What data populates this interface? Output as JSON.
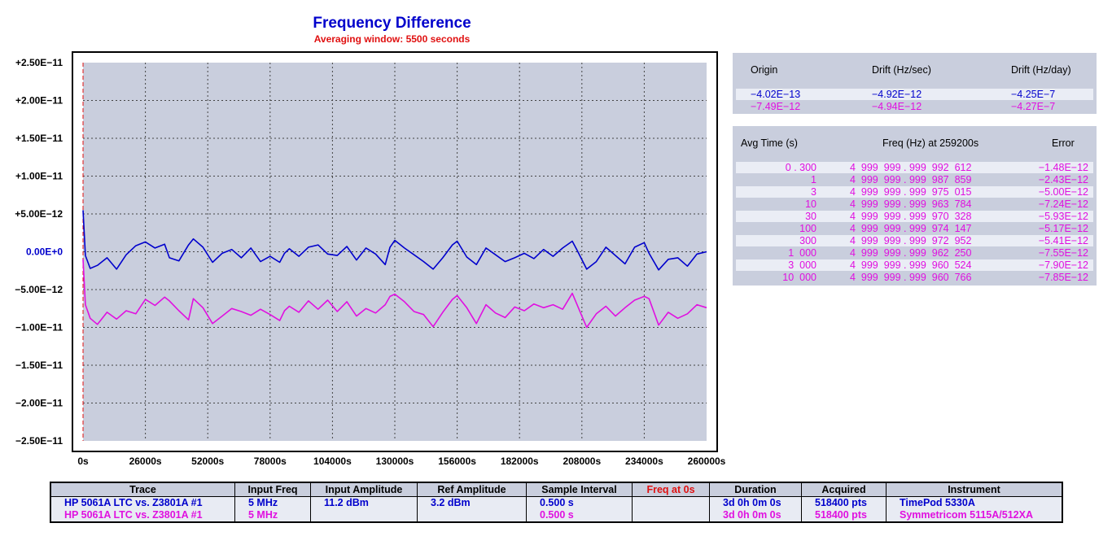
{
  "chart_data": {
    "type": "line",
    "title": "Frequency Difference",
    "subtitle": "Averaging window: 5500 seconds",
    "x_ticks": [
      "0s",
      "26000s",
      "52000s",
      "78000s",
      "104000s",
      "130000s",
      "156000s",
      "182000s",
      "208000s",
      "234000s",
      "260000s"
    ],
    "y_ticks": [
      "+2.50E−11",
      "+2.00E−11",
      "+1.50E−11",
      "+1.00E−11",
      "+5.00E−12",
      "0.00E+0",
      "−5.00E−12",
      "−1.00E−11",
      "−1.50E−11",
      "−2.00E−11",
      "−2.50E−11"
    ],
    "xlim": [
      0,
      260000
    ],
    "ylim": [
      -2.5e-11,
      2.5e-11
    ],
    "grid": true,
    "series": [
      {
        "color": "#0000cc",
        "x": [
          0,
          1000,
          3000,
          6000,
          10000,
          14000,
          18000,
          22000,
          26000,
          30000,
          34000,
          36000,
          40000,
          44000,
          46000,
          50000,
          54000,
          58000,
          62000,
          66000,
          70000,
          74000,
          78000,
          82000,
          84000,
          86000,
          90000,
          94000,
          98000,
          102000,
          106000,
          110000,
          114000,
          118000,
          122000,
          126000,
          128000,
          130000,
          134000,
          138000,
          142000,
          146000,
          150000,
          154000,
          156000,
          160000,
          164000,
          168000,
          172000,
          176000,
          180000,
          184000,
          188000,
          192000,
          196000,
          200000,
          204000,
          206000,
          210000,
          214000,
          218000,
          222000,
          226000,
          230000,
          234000,
          236000,
          240000,
          244000,
          248000,
          252000,
          256000,
          260000
        ],
        "y": [
          5.5e-12,
          -5e-13,
          -2.2e-12,
          -1.8e-12,
          -8e-13,
          -2.3e-12,
          -4e-13,
          8e-13,
          1.3e-12,
          5e-13,
          1e-12,
          -8e-13,
          -1.2e-12,
          9e-13,
          1.7e-12,
          6e-13,
          -1.4e-12,
          -2e-13,
          3e-13,
          -8e-13,
          5e-13,
          -1.3e-12,
          -6e-13,
          -1.4e-12,
          -2e-13,
          4e-13,
          -6e-13,
          6e-13,
          9e-13,
          -3e-13,
          -5e-13,
          7e-13,
          -1.1e-12,
          5e-13,
          -3e-13,
          -1.7e-12,
          6e-13,
          1.5e-12,
          5e-13,
          -4e-13,
          -1.3e-12,
          -2.3e-12,
          -8e-13,
          9e-13,
          1.4e-12,
          -7e-13,
          -1.7e-12,
          5e-13,
          -4e-13,
          -1.3e-12,
          -8e-13,
          -2e-13,
          -9e-13,
          3e-13,
          -6e-13,
          5e-13,
          1.4e-12,
          2e-13,
          -2.3e-12,
          -1.3e-12,
          6e-13,
          -5e-13,
          -1.6e-12,
          6e-13,
          1.2e-12,
          -2e-13,
          -2.4e-12,
          -1e-12,
          -8e-13,
          -1.9e-12,
          -3e-13,
          0.0
        ]
      },
      {
        "color": "#e010e0",
        "x": [
          0,
          1000,
          3000,
          6000,
          10000,
          14000,
          18000,
          22000,
          26000,
          30000,
          34000,
          36000,
          40000,
          44000,
          46000,
          50000,
          54000,
          58000,
          62000,
          66000,
          70000,
          74000,
          78000,
          82000,
          84000,
          86000,
          90000,
          94000,
          98000,
          102000,
          106000,
          110000,
          114000,
          118000,
          122000,
          126000,
          128000,
          130000,
          134000,
          138000,
          142000,
          146000,
          150000,
          154000,
          156000,
          160000,
          164000,
          168000,
          172000,
          176000,
          180000,
          184000,
          188000,
          192000,
          196000,
          200000,
          204000,
          206000,
          210000,
          214000,
          218000,
          222000,
          226000,
          230000,
          234000,
          236000,
          240000,
          244000,
          248000,
          252000,
          256000,
          260000
        ],
        "y": [
          -1e-12,
          -7e-12,
          -8.8e-12,
          -9.6e-12,
          -8e-12,
          -8.9e-12,
          -7.8e-12,
          -8.2e-12,
          -6.3e-12,
          -7.1e-12,
          -6e-12,
          -6.5e-12,
          -7.8e-12,
          -9e-12,
          -6.2e-12,
          -7.4e-12,
          -9.5e-12,
          -8.5e-12,
          -7.5e-12,
          -7.9e-12,
          -8.4e-12,
          -7.6e-12,
          -8.3e-12,
          -9.1e-12,
          -7.8e-12,
          -7.2e-12,
          -8e-12,
          -6.5e-12,
          -7.6e-12,
          -6.4e-12,
          -7.9e-12,
          -6.6e-12,
          -8.5e-12,
          -7.5e-12,
          -8.1e-12,
          -7e-12,
          -5.9e-12,
          -5.6e-12,
          -6.6e-12,
          -7.9e-12,
          -8.3e-12,
          -9.9e-12,
          -8e-12,
          -6.3e-12,
          -5.8e-12,
          -7.4e-12,
          -9.5e-12,
          -7e-12,
          -8.1e-12,
          -8.7e-12,
          -7.3e-12,
          -7.8e-12,
          -6.9e-12,
          -7.4e-12,
          -7e-12,
          -7.6e-12,
          -5.5e-12,
          -7e-12,
          -1e-11,
          -8.2e-12,
          -7.2e-12,
          -8.5e-12,
          -7.4e-12,
          -6.4e-12,
          -5.9e-12,
          -6.2e-12,
          -9.7e-12,
          -8e-12,
          -8.8e-12,
          -8.2e-12,
          -7e-12,
          -7.4e-12
        ]
      }
    ]
  },
  "drift_panel": {
    "headers": [
      "Origin",
      "Drift (Hz/sec)",
      "Drift (Hz/day)"
    ],
    "rows": [
      {
        "color": "#0000cc",
        "origin": "−4.02E−13",
        "per_sec": "−4.92E−12",
        "per_day": "−4.25E−7"
      },
      {
        "color": "#e010e0",
        "origin": "−7.49E−12",
        "per_sec": "−4.94E−12",
        "per_day": "−4.27E−7"
      }
    ]
  },
  "avg_panel": {
    "headers": [
      "Avg Time (s)",
      "Freq (Hz) at 259200s",
      "Error"
    ],
    "rows": [
      {
        "avg": "0 . 300",
        "freq": "4  999  999 . 999  992  612",
        "err": "−1.48E−12"
      },
      {
        "avg": "1",
        "freq": "4  999  999 . 999  987  859",
        "err": "−2.43E−12"
      },
      {
        "avg": "3",
        "freq": "4  999  999 . 999  975  015",
        "err": "−5.00E−12"
      },
      {
        "avg": "10",
        "freq": "4  999  999 . 999  963  784",
        "err": "−7.24E−12"
      },
      {
        "avg": "30",
        "freq": "4  999  999 . 999  970  328",
        "err": "−5.93E−12"
      },
      {
        "avg": "100",
        "freq": "4  999  999 . 999  974  147",
        "err": "−5.17E−12"
      },
      {
        "avg": "300",
        "freq": "4  999  999 . 999  972  952",
        "err": "−5.41E−12"
      },
      {
        "avg": "1  000",
        "freq": "4  999  999 . 999  962  250",
        "err": "−7.55E−12"
      },
      {
        "avg": "3  000",
        "freq": "4  999  999 . 999  960  524",
        "err": "−7.90E−12"
      },
      {
        "avg": "10  000",
        "freq": "4  999  999 . 999  960  766",
        "err": "−7.85E−12"
      }
    ]
  },
  "trace_table": {
    "headers": [
      "Trace",
      "Input Freq",
      "Input Amplitude",
      "Ref Amplitude",
      "Sample Interval",
      "Freq at 0s",
      "Duration",
      "Acquired",
      "Instrument"
    ],
    "freq_at_0s_header_color": "#e01010",
    "rows": [
      {
        "color": "#0000cc",
        "trace": "HP 5061A LTC vs. Z3801A #1",
        "input_freq": "5 MHz",
        "input_amp": "11.2 dBm",
        "ref_amp": "3.2 dBm",
        "sample_interval": "0.500 s",
        "freq_at_0s": "",
        "duration": "3d 0h 0m 0s",
        "acquired": "518400 pts",
        "instrument": "TimePod 5330A"
      },
      {
        "color": "#e010e0",
        "trace": "HP 5061A LTC vs. Z3801A #1",
        "input_freq": "5 MHz",
        "input_amp": "",
        "ref_amp": "",
        "sample_interval": "0.500 s",
        "freq_at_0s": "",
        "duration": "3d 0h 0m 0s",
        "acquired": "518400 pts",
        "instrument": "Symmetricom 5115A/512XA"
      }
    ]
  }
}
